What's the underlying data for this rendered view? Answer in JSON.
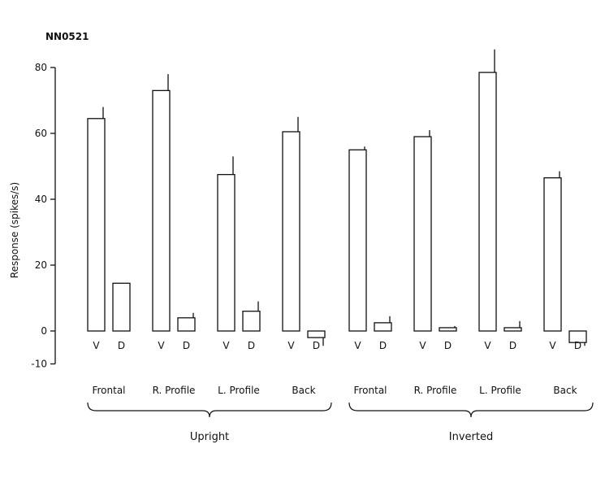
{
  "chart_data": {
    "type": "bar",
    "title": "NN0521",
    "ylabel": "Response (spikes/s)",
    "ylim": [
      -10,
      80
    ],
    "yticks": [
      80,
      60,
      40,
      20,
      0,
      -10
    ],
    "bar_labels": [
      "V",
      "D"
    ],
    "groups": [
      {
        "name": "Upright",
        "views": [
          {
            "name": "Frontal",
            "V": 64.5,
            "V_err": 3.5,
            "D": 14.5,
            "D_err": 0
          },
          {
            "name": "R. Profile",
            "V": 73,
            "V_err": 5,
            "D": 4,
            "D_err": 1.5
          },
          {
            "name": "L. Profile",
            "V": 47.5,
            "V_err": 5.5,
            "D": 6,
            "D_err": 3
          },
          {
            "name": "Back",
            "V": 60.5,
            "V_err": 4.5,
            "D": -2,
            "D_err": 2.5
          }
        ]
      },
      {
        "name": "Inverted",
        "views": [
          {
            "name": "Frontal",
            "V": 55,
            "V_err": 1,
            "D": 2.5,
            "D_err": 2
          },
          {
            "name": "R. Profile",
            "V": 59,
            "V_err": 2,
            "D": 1,
            "D_err": 0.5
          },
          {
            "name": "L. Profile",
            "V": 78.5,
            "V_err": 7,
            "D": 1,
            "D_err": 2
          },
          {
            "name": "Back",
            "V": 46.5,
            "V_err": 2,
            "D": -3.5,
            "D_err": 1
          }
        ]
      }
    ]
  }
}
